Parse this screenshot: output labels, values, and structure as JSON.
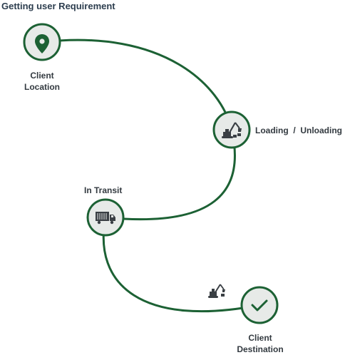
{
  "heading": "Getting user Requirement",
  "colors": {
    "path": "#1c6134",
    "node_fill": "#e7eae8",
    "node_stroke": "#1c6134",
    "text": "#333a40"
  },
  "steps": [
    {
      "label_line1": "Client",
      "label_line2": "Location",
      "icon": "location-pin-icon"
    },
    {
      "label": "Loading  /  Unloading",
      "icon": "excavator-loading-icon"
    },
    {
      "label": "In Transit",
      "icon": "truck-icon"
    },
    {
      "label_line1": "Client",
      "label_line2": "Destination",
      "icon": "checkmark-icon"
    }
  ],
  "extra_icon": "excavator-small-icon"
}
